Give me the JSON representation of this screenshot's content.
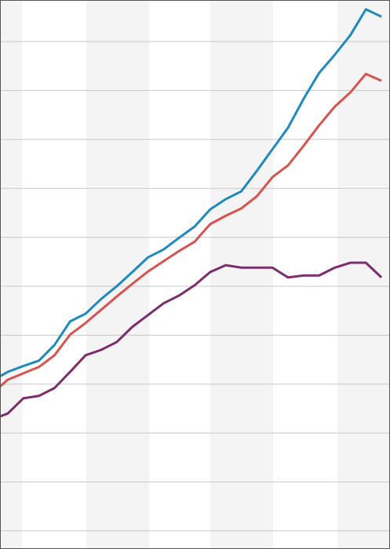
{
  "chart_data": {
    "type": "line",
    "x": [
      -0.5,
      0,
      1,
      2,
      3,
      4,
      5,
      6,
      7,
      8,
      9,
      10,
      11,
      12,
      13,
      14,
      15,
      16,
      17,
      18,
      19,
      20,
      21,
      22,
      23,
      24
    ],
    "xlim": [
      -0.5,
      24.55
    ],
    "ylim": [
      -0.37,
      10.85
    ],
    "yticks": [
      0,
      1,
      2,
      3,
      4,
      5,
      6,
      7,
      8,
      9,
      10
    ],
    "grid": true,
    "series": [
      {
        "color": "#1f8ac0",
        "values": [
          3.16,
          3.25,
          3.37,
          3.48,
          3.8,
          4.28,
          4.44,
          4.74,
          5.0,
          5.29,
          5.59,
          5.75,
          5.99,
          6.22,
          6.57,
          6.78,
          6.94,
          7.36,
          7.8,
          8.24,
          8.83,
          9.36,
          9.73,
          10.13,
          10.66,
          10.51
        ]
      },
      {
        "color": "#d9534f",
        "values": [
          2.95,
          3.09,
          3.22,
          3.35,
          3.59,
          4.01,
          4.25,
          4.52,
          4.79,
          5.05,
          5.3,
          5.51,
          5.72,
          5.91,
          6.27,
          6.44,
          6.59,
          6.84,
          7.23,
          7.47,
          7.87,
          8.29,
          8.67,
          8.96,
          9.34,
          9.2
        ]
      },
      {
        "color": "#7b2d6e",
        "values": [
          2.34,
          2.4,
          2.71,
          2.76,
          2.92,
          3.25,
          3.59,
          3.7,
          3.86,
          4.17,
          4.41,
          4.65,
          4.81,
          5.02,
          5.29,
          5.43,
          5.38,
          5.38,
          5.38,
          5.18,
          5.22,
          5.22,
          5.38,
          5.48,
          5.48,
          5.18
        ]
      }
    ]
  }
}
